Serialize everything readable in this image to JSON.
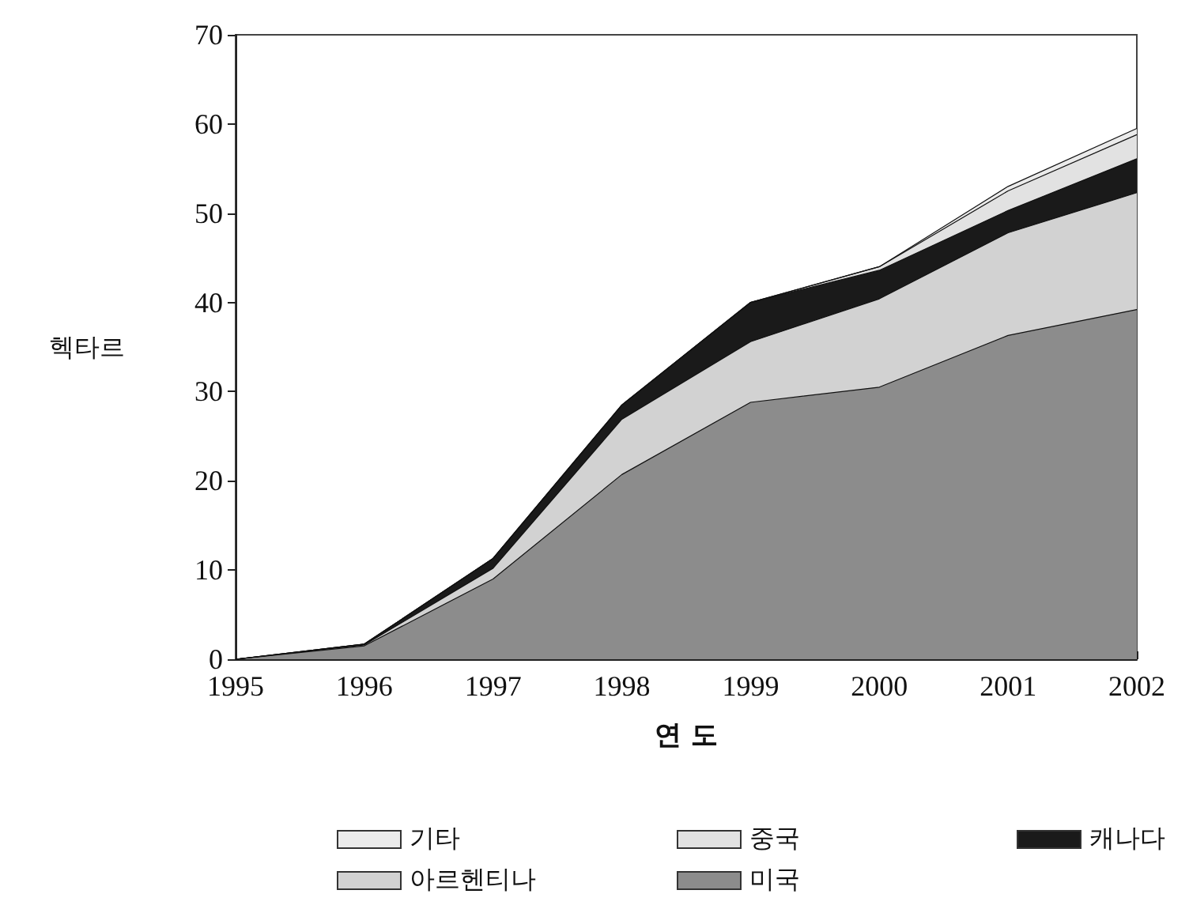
{
  "chart_data": {
    "type": "area",
    "stacked": true,
    "xlabel": "연 도",
    "ylabel": "헥타르",
    "x": [
      1995,
      1996,
      1997,
      1998,
      1999,
      2000,
      2001,
      2002
    ],
    "series": [
      {
        "name": "미국",
        "color": "#8c8c8c",
        "values": [
          0,
          1.5,
          9,
          20.7,
          28.8,
          30.5,
          36.3,
          39.2
        ]
      },
      {
        "name": "아르헨티나",
        "color": "#d2d2d2",
        "values": [
          0,
          0.1,
          1.2,
          6.2,
          6.8,
          9.9,
          11.5,
          13.1
        ]
      },
      {
        "name": "캐나다",
        "color": "#1a1a1a",
        "values": [
          0,
          0.1,
          1.1,
          1.6,
          4.4,
          3.2,
          2.5,
          3.8
        ]
      },
      {
        "name": "중국",
        "color": "#e2e2e2",
        "values": [
          0,
          0,
          0,
          0,
          0,
          0.4,
          2.2,
          2.7
        ]
      },
      {
        "name": "기타",
        "color": "#ebebeb",
        "values": [
          0,
          0,
          0,
          0,
          0,
          0,
          0.5,
          0.7
        ]
      }
    ],
    "xlim": [
      1995,
      2002
    ],
    "xticks": [
      1995,
      1996,
      1997,
      1998,
      1999,
      2000,
      2001,
      2002
    ],
    "ylim": [
      0,
      70
    ],
    "yticks": [
      0,
      10,
      20,
      30,
      40,
      50,
      60,
      70
    ],
    "grid": false,
    "legend": "bottom",
    "marker": "none",
    "line_style": "solid"
  }
}
